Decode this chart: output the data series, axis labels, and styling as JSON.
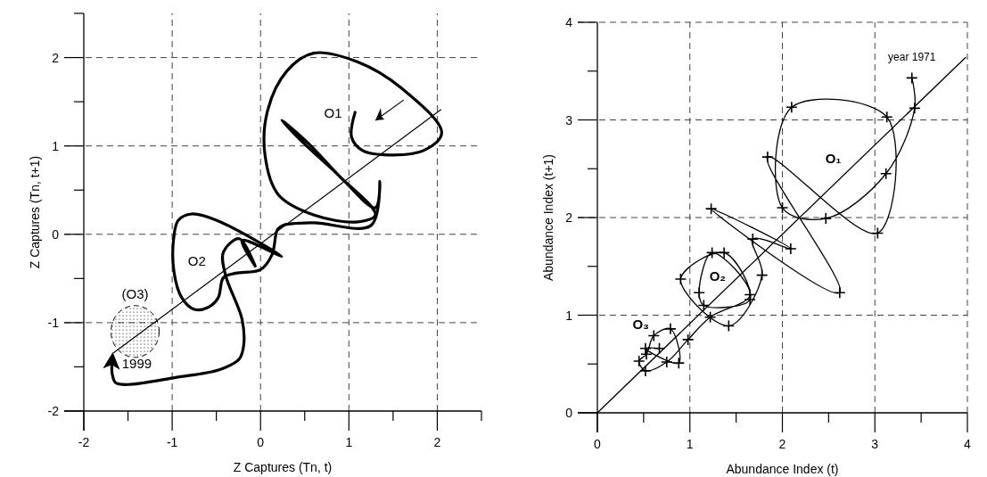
{
  "chart_data": [
    {
      "type": "line",
      "xlabel": "Z Captures (Tn, t)",
      "ylabel": "Z Captures (Tn, t+1)",
      "xlim": [
        -2,
        2.5
      ],
      "ylim": [
        -2,
        2.5
      ],
      "xticks": [
        -2,
        {
          "value": -1.5,
          "label": null
        },
        -1,
        {
          "value": -0.5,
          "label": null
        },
        0,
        {
          "value": 0.5,
          "label": null
        },
        1,
        {
          "value": 1.5,
          "label": null
        },
        2,
        {
          "value": 2.5,
          "label": null
        }
      ],
      "yticks": [
        -2,
        {
          "value": -1.5,
          "label": null
        },
        -1,
        {
          "value": -0.5,
          "label": null
        },
        0,
        {
          "value": 0.5,
          "label": null
        },
        1,
        {
          "value": 1.5,
          "label": null
        },
        2,
        {
          "value": 2.5,
          "label": null
        }
      ],
      "grid": true,
      "line_style": "solid",
      "series": [
        {
          "color": "#000000",
          "x": [
            1.07,
            1.03,
            1.15,
            1.4,
            1.85,
            2.05,
            1.6,
            1.1,
            0.6,
            0.3,
            0.08,
            0.05,
            0.2,
            0.6,
            1.1,
            1.3,
            0.9,
            0.5,
            0.24,
            0.55,
            0.95,
            1.3,
            1.35,
            1.25,
            0.6,
            0.25,
            0.19,
            0.13,
            0,
            -0.28,
            -0.42,
            -0.48,
            -0.6,
            -0.75,
            -0.89,
            -0.98,
            -0.98,
            -0.93,
            -0.78,
            -0.5,
            0.24,
            -0.21,
            -0.06,
            -0.24,
            -0.42,
            -0.4,
            -0.21,
            -0.19,
            -0.24,
            -0.46,
            -0.96,
            -1.5,
            -1.64,
            -1.68,
            -1.68
          ],
          "values": [
            1.38,
            1.1,
            0.95,
            0.9,
            0.95,
            1.15,
            1.65,
            1.95,
            2.05,
            1.85,
            1.4,
            0.9,
            0.45,
            0.22,
            0.14,
            0.22,
            0.65,
            1.02,
            1.29,
            1.02,
            0.6,
            0.3,
            0.6,
            0.1,
            0.13,
            0.1,
            0.05,
            -0.23,
            -0.4,
            -0.44,
            -0.49,
            -0.72,
            -0.83,
            -0.85,
            -0.72,
            -0.42,
            -0.02,
            0.16,
            0.23,
            0.16,
            -0.25,
            -0.07,
            -0.36,
            -0.05,
            -0.2,
            -0.45,
            -0.96,
            -1.25,
            -1.41,
            -1.53,
            -1.62,
            -1.7,
            -1.68,
            -1.57,
            -1.43
          ]
        },
        {
          "color": "#000000",
          "x": [
            -1.66,
            2.04
          ],
          "values": [
            -1.34,
            1.41
          ]
        }
      ],
      "annotations": [
        "O1",
        "O2",
        "(O3)",
        "1999"
      ]
    },
    {
      "type": "line",
      "xlabel": "Abundance Index (t)",
      "ylabel": "Abundance Index (t+1)",
      "xlim": [
        0,
        4
      ],
      "ylim": [
        0,
        4
      ],
      "xticks": [
        0,
        {
          "value": 0.5,
          "label": null
        },
        1,
        {
          "value": 1.5,
          "label": null
        },
        2,
        {
          "value": 2.5,
          "label": null
        },
        3,
        {
          "value": 3.5,
          "label": null
        },
        4
      ],
      "yticks": [
        0,
        {
          "value": 0.5,
          "label": null
        },
        1,
        {
          "value": 1.5,
          "label": null
        },
        2,
        {
          "value": 2.5,
          "label": null
        },
        3,
        {
          "value": 3.5,
          "label": null
        },
        4
      ],
      "grid": true,
      "line_style": "solid",
      "series": [
        {
          "color": "#000000",
          "marker": "cross",
          "x": [
            3.4,
            3.43,
            3.12,
            2.47,
            2.0,
            2.1,
            3.13,
            3.03,
            1.84,
            2.62,
            1.23,
            2.09,
            1.68,
            1.78,
            1.42,
            0.9,
            1.37,
            1.65,
            1.15,
            1.1,
            1.24,
            1.65,
            1.22,
            0.98,
            0.75,
            0.52,
            0.45,
            0.53,
            0.61,
            0.79,
            0.88,
            0.52,
            0.67
          ],
          "values": [
            3.43,
            3.12,
            2.45,
            1.99,
            2.1,
            3.13,
            3.03,
            1.84,
            2.62,
            1.23,
            2.09,
            1.68,
            1.78,
            1.41,
            0.89,
            1.37,
            1.64,
            1.16,
            1.1,
            1.23,
            1.64,
            1.21,
            0.98,
            0.75,
            0.52,
            0.43,
            0.53,
            0.6,
            0.79,
            0.86,
            0.51,
            0.66,
            0.66
          ]
        },
        {
          "color": "#000000",
          "x": [
            0,
            3.98
          ],
          "values": [
            0,
            3.64
          ]
        }
      ],
      "annotations": [
        "O₁",
        "O₂",
        "O₃",
        "year 1971"
      ]
    }
  ]
}
